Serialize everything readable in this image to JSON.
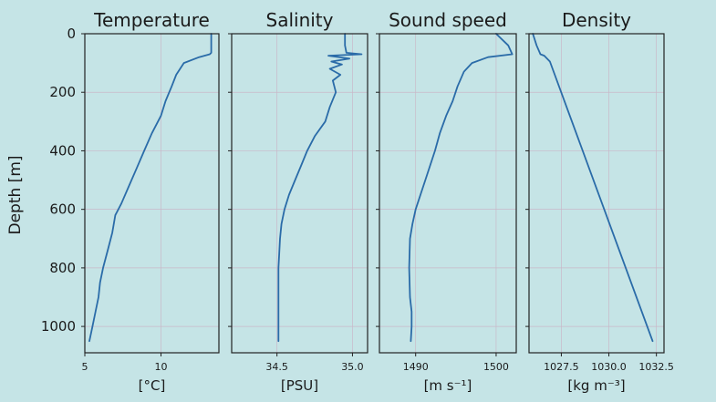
{
  "chart_data": {
    "type": "line",
    "ylabel": "Depth [m]",
    "ylim": [
      1090,
      0
    ],
    "y_ticks": [
      0,
      200,
      400,
      600,
      800,
      1000
    ],
    "y_tick_labels": [
      "0",
      "200",
      "400",
      "600",
      "800",
      "1000"
    ],
    "line_color": "#2a6ba8",
    "panels": [
      {
        "title": "Temperature",
        "xlabel": "[°C]",
        "xlim": [
          5,
          13.8
        ],
        "x_ticks": [
          5,
          10
        ],
        "x_tick_labels": [
          "5",
          "10"
        ],
        "series": [
          {
            "x": [
              13.3,
              13.3,
              13.2,
              12.5,
              11.5,
              11.0,
              10.7,
              10.3,
              10.0,
              9.4,
              8.9,
              8.4,
              7.9,
              7.4,
              7.0,
              6.8,
              6.5,
              6.2,
              6.0,
              5.9,
              5.7,
              5.5,
              5.3
            ],
            "y": [
              0,
              65,
              70,
              80,
              100,
              140,
              180,
              230,
              280,
              340,
              400,
              460,
              520,
              580,
              620,
              680,
              740,
              800,
              850,
              900,
              950,
              1000,
              1050
            ]
          }
        ]
      },
      {
        "title": "Salinity",
        "xlabel": "[PSU]",
        "xlim": [
          34.2,
          35.1
        ],
        "x_ticks": [
          34.5,
          35.0
        ],
        "x_tick_labels": [
          "34.5",
          "35.0"
        ],
        "series": [
          {
            "x": [
              34.95,
              34.95,
              34.96,
              35.06,
              34.84,
              34.98,
              34.86,
              34.93,
              34.85,
              34.92,
              34.87,
              34.89,
              34.85,
              34.82,
              34.75,
              34.7,
              34.66,
              34.62,
              34.58,
              34.55,
              34.53,
              34.52,
              34.51,
              34.51,
              34.51,
              34.51
            ],
            "y": [
              0,
              40,
              65,
              70,
              75,
              85,
              95,
              105,
              120,
              140,
              160,
              200,
              250,
              300,
              350,
              400,
              450,
              500,
              550,
              600,
              650,
              700,
              800,
              900,
              1000,
              1050
            ]
          }
        ]
      },
      {
        "title": "Sound speed",
        "xlabel": "[m s⁻¹]",
        "xlim": [
          1485.5,
          1502.5
        ],
        "x_ticks": [
          1490,
          1500
        ],
        "x_tick_labels": [
          "1490",
          "1500"
        ],
        "series": [
          {
            "x": [
              1500.0,
              1501.5,
              1502.0,
              1499.0,
              1497.0,
              1496.0,
              1495.2,
              1494.6,
              1493.8,
              1493.0,
              1492.4,
              1491.8,
              1491.2,
              1490.6,
              1490.0,
              1489.6,
              1489.3,
              1489.2,
              1489.3,
              1489.5,
              1489.5,
              1489.4
            ],
            "y": [
              0,
              40,
              70,
              80,
              100,
              130,
              180,
              230,
              280,
              340,
              400,
              450,
              500,
              550,
              600,
              650,
              700,
              800,
              900,
              950,
              1000,
              1050
            ]
          }
        ]
      },
      {
        "title": "Density",
        "xlabel": "[kg m⁻³]",
        "xlim": [
          1025.8,
          1032.9
        ],
        "x_ticks": [
          1027.5,
          1030.0,
          1032.5
        ],
        "x_tick_labels": [
          "1027.5",
          "1030.0",
          "1032.5"
        ],
        "series": [
          {
            "x": [
              1026.0,
              1026.2,
              1026.4,
              1026.6,
              1026.9,
              1032.3
            ],
            "y": [
              0,
              40,
              70,
              75,
              95,
              1050
            ]
          }
        ]
      }
    ]
  }
}
